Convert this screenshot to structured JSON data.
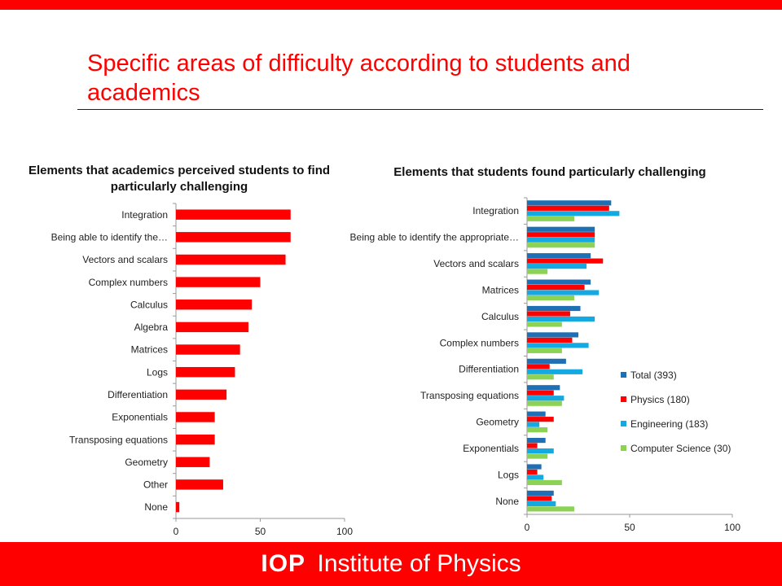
{
  "slide": {
    "title": "Specific areas of difficulty according to students and academics",
    "accent_color": "#ff0000"
  },
  "footer": {
    "logo_mark": "IOP",
    "logo_name": "Institute of Physics"
  },
  "chart_data": [
    {
      "type": "bar",
      "orientation": "horizontal",
      "title": "Elements that academics perceived students to find particularly challenging",
      "categories": [
        "Integration",
        "Being able to identify the…",
        "Vectors and scalars",
        "Complex numbers",
        "Calculus",
        "Algebra",
        "Matrices",
        "Logs",
        "Differentiation",
        "Exponentials",
        "Transposing equations",
        "Geometry",
        "Other",
        "None"
      ],
      "series": [
        {
          "color": "#ff0000",
          "values": [
            68,
            68,
            65,
            50,
            45,
            43,
            38,
            35,
            30,
            23,
            23,
            20,
            28,
            2
          ]
        }
      ],
      "xlim": [
        0,
        100
      ],
      "xticks": [
        0,
        50,
        100
      ],
      "grid": false,
      "legend": "none"
    },
    {
      "type": "bar",
      "orientation": "horizontal",
      "title": "Elements that students found particularly challenging",
      "categories": [
        "Integration",
        "Being able to identify the appropriate…",
        "Vectors and scalars",
        "Matrices",
        "Calculus",
        "Complex numbers",
        "Differentiation",
        "Transposing equations",
        "Geometry",
        "Exponentials",
        "Logs",
        "None"
      ],
      "series": [
        {
          "name": "Total (393)",
          "color": "#1f6fb5",
          "values": [
            41,
            33,
            31,
            31,
            26,
            25,
            19,
            16,
            9,
            9,
            7,
            13
          ]
        },
        {
          "name": "Physics (180)",
          "color": "#ff0000",
          "values": [
            40,
            33,
            37,
            28,
            21,
            22,
            11,
            13,
            13,
            5,
            5,
            12
          ]
        },
        {
          "name": "Engineering (183)",
          "color": "#14a9e0",
          "values": [
            45,
            33,
            29,
            35,
            33,
            30,
            27,
            18,
            6,
            13,
            8,
            14
          ]
        },
        {
          "name": "Computer Science (30)",
          "color": "#8cd254",
          "values": [
            23,
            33,
            10,
            23,
            17,
            17,
            13,
            17,
            10,
            10,
            17,
            23
          ]
        }
      ],
      "xlim": [
        0,
        100
      ],
      "xticks": [
        0,
        50,
        100
      ],
      "grid": false,
      "legend": "right"
    }
  ]
}
